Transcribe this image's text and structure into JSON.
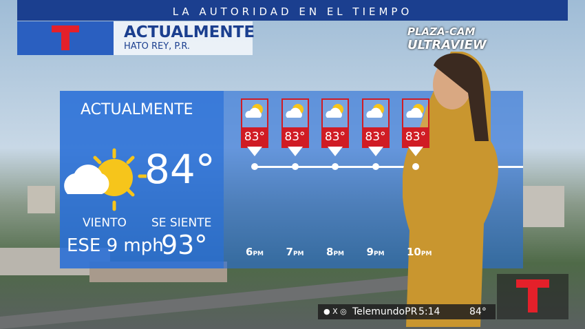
{
  "banner": {
    "text": "LA AUTORIDAD EN EL TIEMPO"
  },
  "header": {
    "title": "ACTUALMENTE",
    "location": "HATO REY, P.R."
  },
  "camera_logo": {
    "line1": "PLAZA-CAM",
    "line2": "ULTRAVIEW"
  },
  "current": {
    "title": "ACTUALMENTE",
    "temperature": "84°",
    "wind_label": "VIENTO",
    "wind": "ESE 9 mph",
    "feels_label": "SE SIENTE",
    "feels": "93°"
  },
  "forecast": [
    {
      "temp": "83°",
      "hour": "6",
      "suffix": "PM"
    },
    {
      "temp": "83°",
      "hour": "7",
      "suffix": "PM"
    },
    {
      "temp": "83°",
      "hour": "8",
      "suffix": "PM"
    },
    {
      "temp": "83°",
      "hour": "9",
      "suffix": "PM"
    },
    {
      "temp": "83°",
      "hour": "10",
      "suffix": "PM"
    }
  ],
  "ticker": {
    "handle": "TelemundoPR",
    "time": "5:14",
    "temp": "84°"
  }
}
